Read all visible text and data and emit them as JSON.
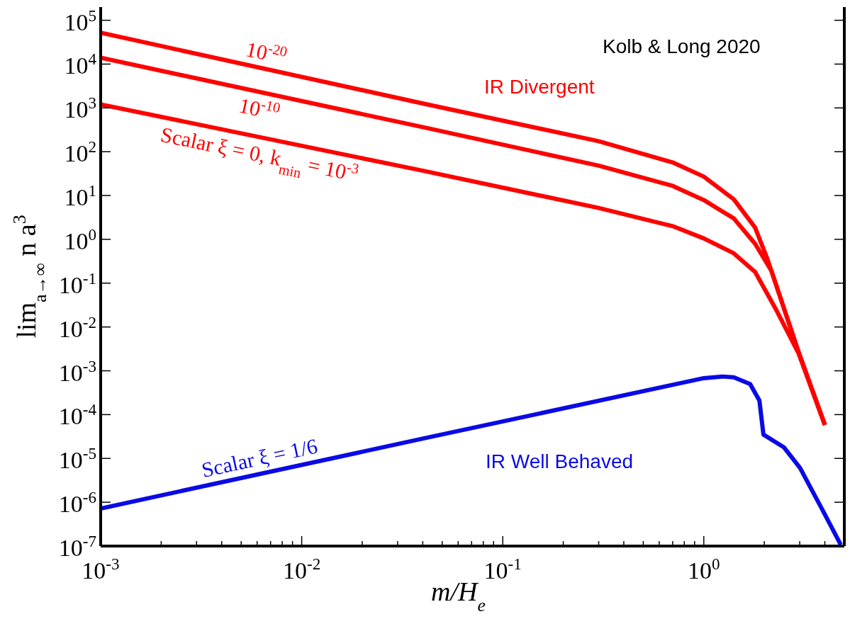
{
  "chart_data": {
    "type": "line",
    "xlabel": "m/H$_{e}$",
    "ylabel": "lim$_{a→∞}$ n a$^{3}$",
    "annotations": [
      "Kolb & Long 2020",
      "IR Divergent",
      "IR Well Behaved"
    ],
    "log": "xy",
    "marker": "none",
    "line_style": "solid",
    "xlim": [
      0.001,
      5
    ],
    "ylim": [
      1e-07,
      200000.0
    ],
    "xticks": [
      {
        "value": 0.001,
        "label": "10$^{-3}$"
      },
      {
        "value": 0.002,
        "label": null
      },
      {
        "value": 0.003,
        "label": null
      },
      {
        "value": 0.004,
        "label": null
      },
      {
        "value": 0.005,
        "label": null
      },
      {
        "value": 0.006,
        "label": null
      },
      {
        "value": 0.007,
        "label": null
      },
      {
        "value": 0.008,
        "label": null
      },
      {
        "value": 0.009,
        "label": null
      },
      {
        "value": 0.01,
        "label": "10$^{-2}$"
      },
      {
        "value": 0.02,
        "label": null
      },
      {
        "value": 0.03,
        "label": null
      },
      {
        "value": 0.04,
        "label": null
      },
      {
        "value": 0.05,
        "label": null
      },
      {
        "value": 0.06,
        "label": null
      },
      {
        "value": 0.07,
        "label": null
      },
      {
        "value": 0.08,
        "label": null
      },
      {
        "value": 0.09,
        "label": null
      },
      {
        "value": 0.1,
        "label": "10$^{-1}$"
      },
      {
        "value": 0.2,
        "label": null
      },
      {
        "value": 0.3,
        "label": null
      },
      {
        "value": 0.4,
        "label": null
      },
      {
        "value": 0.5,
        "label": null
      },
      {
        "value": 0.6,
        "label": null
      },
      {
        "value": 0.7,
        "label": null
      },
      {
        "value": 0.8,
        "label": null
      },
      {
        "value": 0.9,
        "label": null
      },
      {
        "value": 1,
        "label": "10$^{0}$"
      },
      {
        "value": 2,
        "label": null
      },
      {
        "value": 3,
        "label": null
      },
      {
        "value": 4,
        "label": null
      }
    ],
    "yticks": [
      {
        "value": 1e-07,
        "label": "10$^{-7}$"
      },
      {
        "value": 1e-06,
        "label": "10$^{-6}$"
      },
      {
        "value": 1e-05,
        "label": "10$^{-5}$"
      },
      {
        "value": 0.0001,
        "label": "10$^{-4}$"
      },
      {
        "value": 0.001,
        "label": "10$^{-3}$"
      },
      {
        "value": 0.01,
        "label": "10$^{-2}$"
      },
      {
        "value": 0.1,
        "label": "10$^{-1}$"
      },
      {
        "value": 1,
        "label": "10$^{0}$"
      },
      {
        "value": 10,
        "label": "10$^{1}$"
      },
      {
        "value": 100,
        "label": "10$^{2}$"
      },
      {
        "value": 1000,
        "label": "10$^{3}$"
      },
      {
        "value": 10000,
        "label": "10$^{4}$"
      },
      {
        "value": 100000,
        "label": "10$^{5}$"
      }
    ],
    "series": [
      {
        "name": "10$^{-20}$",
        "color": "#ff0000",
        "x": [
          0.001,
          0.041,
          0.3,
          0.7,
          1.0,
          1.41,
          1.8,
          2.07,
          2.96,
          4.0
        ],
        "values": [
          52000,
          1230,
          174,
          57,
          27,
          8.2,
          1.85,
          0.36,
          0.0027,
          5.8e-05
        ]
      },
      {
        "name": "10$^{-10}$",
        "color": "#ff0000",
        "x": [
          0.001,
          0.041,
          0.3,
          0.7,
          1.0,
          1.41,
          1.8,
          2.17,
          2.96,
          4.0
        ],
        "values": [
          14000,
          355,
          48,
          16.6,
          7.9,
          3.0,
          0.79,
          0.19,
          0.0027,
          5.8e-05
        ]
      },
      {
        "name": "Scalar ξ = 0,  k$_{min}$ = 10$^{-3}$",
        "color": "#ff0000",
        "x": [
          0.001,
          0.041,
          0.3,
          0.7,
          1.0,
          1.41,
          1.8,
          2.31,
          2.96,
          4.0
        ],
        "values": [
          1200,
          36,
          5.2,
          2.0,
          1.05,
          0.48,
          0.18,
          0.023,
          0.0025,
          5.8e-05
        ]
      },
      {
        "name": "Scalar ξ = 1/6",
        "color": "#0a0ae6",
        "x": [
          0.001,
          0.041,
          1.0,
          1.24,
          1.41,
          1.7,
          1.89,
          1.98,
          2.5,
          3.01,
          3.92,
          4.8
        ],
        "values": [
          7.2e-07,
          2.9e-05,
          0.00068,
          0.00074,
          0.00071,
          0.0005,
          0.00021,
          3.5e-05,
          1.8e-05,
          6.1e-06,
          6.3e-07,
          1.07e-07
        ]
      }
    ]
  }
}
